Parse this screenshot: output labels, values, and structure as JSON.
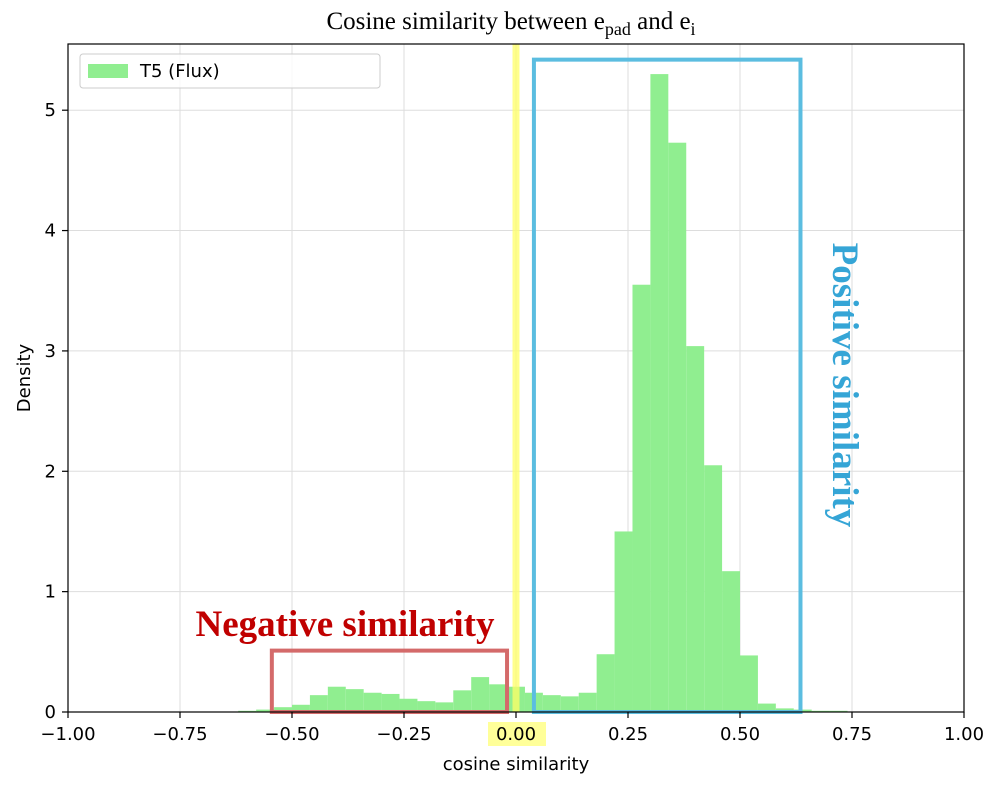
{
  "chart_data": {
    "type": "histogram",
    "title_main": "Cosine similarity between e",
    "title_sub1": "pad",
    "title_and": " and  e",
    "title_sub2": "i",
    "xlabel": "cosine similarity",
    "ylabel": "Density",
    "xlim": [
      -1.0,
      1.0
    ],
    "ylim": [
      0,
      5.55
    ],
    "grid": true,
    "xticks": [
      {
        "value": -1.0,
        "label": "−1.00"
      },
      {
        "value": -0.75,
        "label": "−0.75"
      },
      {
        "value": -0.5,
        "label": "−0.50"
      },
      {
        "value": -0.25,
        "label": "−0.25"
      },
      {
        "value": 0.0,
        "label": "0.00"
      },
      {
        "value": 0.25,
        "label": "0.25"
      },
      {
        "value": 0.5,
        "label": "0.50"
      },
      {
        "value": 0.75,
        "label": "0.75"
      },
      {
        "value": 1.0,
        "label": "1.00"
      }
    ],
    "yticks": [
      {
        "value": 0,
        "label": "0"
      },
      {
        "value": 1,
        "label": "1"
      },
      {
        "value": 2,
        "label": "2"
      },
      {
        "value": 3,
        "label": "3"
      },
      {
        "value": 4,
        "label": "4"
      },
      {
        "value": 5,
        "label": "5"
      }
    ],
    "legend": {
      "label": "T5 (Flux)",
      "position": "top-left"
    },
    "series": [
      {
        "name": "T5 (Flux)",
        "color": "#90ee90",
        "bin_edges": [
          -0.62,
          -0.58,
          -0.54,
          -0.5,
          -0.46,
          -0.42,
          -0.38,
          -0.34,
          -0.3,
          -0.26,
          -0.22,
          -0.18,
          -0.14,
          -0.1,
          -0.06,
          -0.02,
          0.02,
          0.06,
          0.1,
          0.14,
          0.18,
          0.22,
          0.26,
          0.3,
          0.34,
          0.38,
          0.42,
          0.46,
          0.5,
          0.54,
          0.58,
          0.62,
          0.66,
          0.7,
          0.74
        ],
        "values": [
          0.01,
          0.02,
          0.04,
          0.06,
          0.14,
          0.21,
          0.19,
          0.16,
          0.15,
          0.11,
          0.09,
          0.08,
          0.18,
          0.29,
          0.23,
          0.21,
          0.16,
          0.14,
          0.13,
          0.16,
          0.48,
          1.5,
          3.55,
          5.3,
          4.73,
          3.04,
          2.05,
          1.17,
          0.47,
          0.07,
          0.03,
          0.02,
          0.01,
          0.01
        ]
      }
    ],
    "zero_line": {
      "x": 0.0,
      "color": "#ffff66"
    },
    "annotations": [
      {
        "name": "negative",
        "text": "Negative similarity",
        "color": "#c00000",
        "box_color": "#d46a6a",
        "x_range": [
          -0.545,
          -0.02
        ],
        "y_range": [
          0.0,
          0.51
        ]
      },
      {
        "name": "positive",
        "text": "Positive similarity",
        "color": "#35a5d6",
        "box_color": "#5bbde0",
        "x_range": [
          0.04,
          0.635
        ],
        "y_range": [
          0.0,
          5.42
        ]
      }
    ],
    "highlight_tick": {
      "value": 0.0,
      "color": "#ffff99"
    }
  }
}
